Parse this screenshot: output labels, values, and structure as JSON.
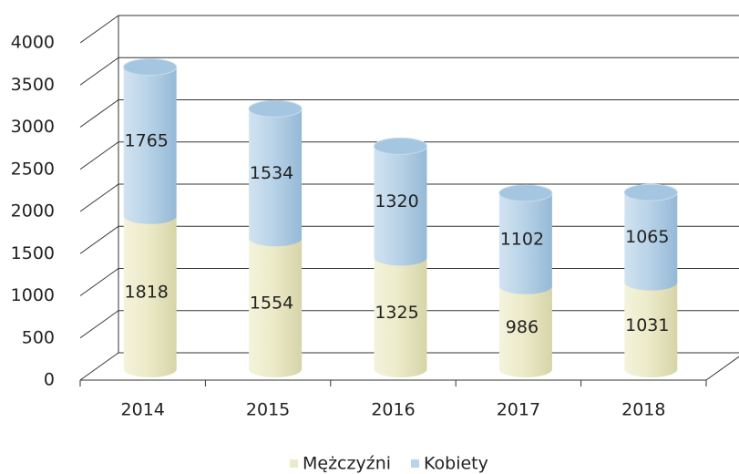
{
  "chart_data": {
    "type": "bar",
    "stacked": true,
    "categories": [
      "2014",
      "2015",
      "2016",
      "2017",
      "2018"
    ],
    "series": [
      {
        "name": "Mężczyźni",
        "color": "#ecebc9",
        "values": [
          1818,
          1554,
          1325,
          986,
          1031
        ]
      },
      {
        "name": "Kobiety",
        "color": "#b9d3e8",
        "values": [
          1765,
          1534,
          1320,
          1102,
          1065
        ]
      }
    ],
    "ylim": [
      0,
      4000
    ],
    "yticks": [
      0,
      500,
      1000,
      1500,
      2000,
      2500,
      3000,
      3500,
      4000
    ],
    "grid": true,
    "legend": "bottom"
  }
}
